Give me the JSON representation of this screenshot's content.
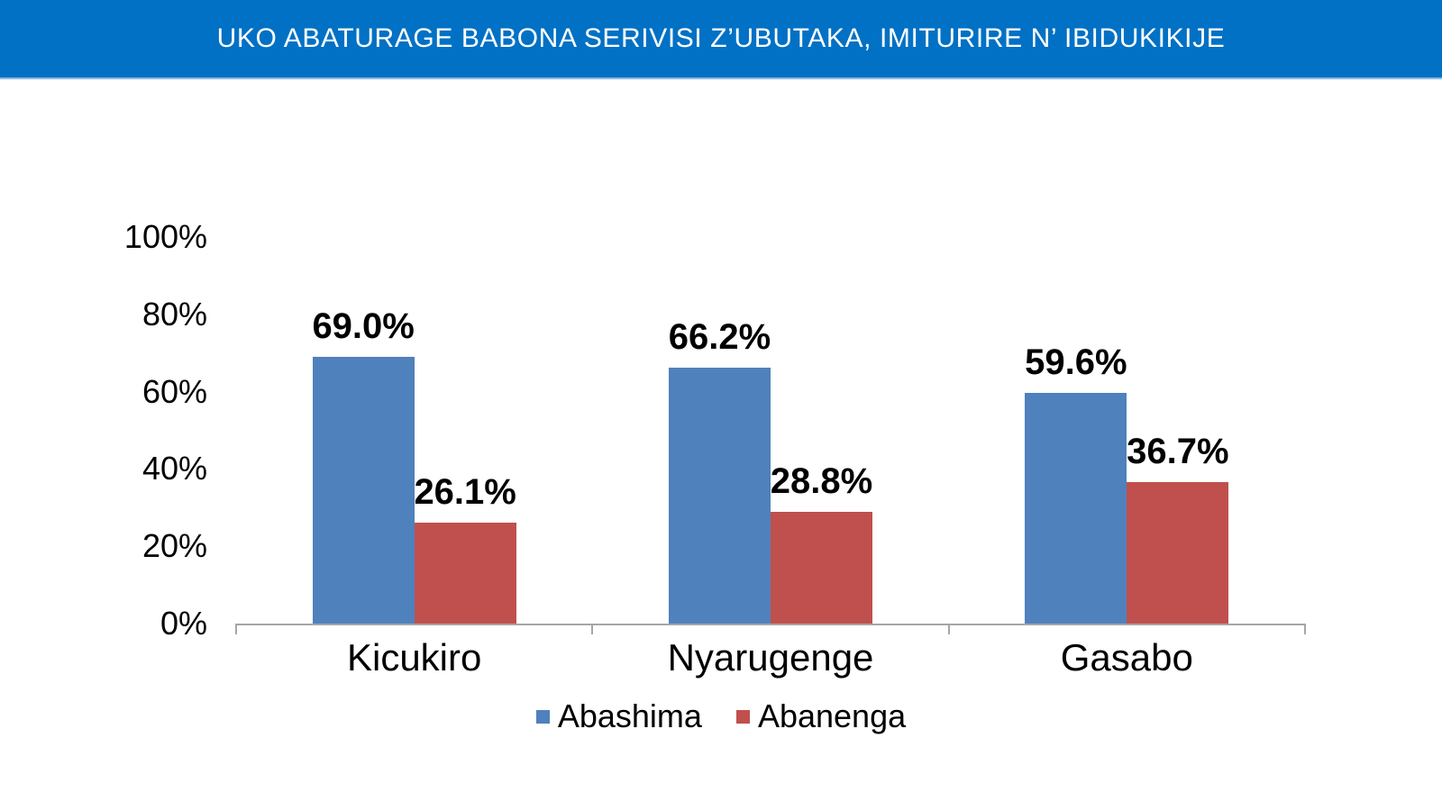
{
  "header": {
    "title": "UKO ABATURAGE BABONA SERIVISI Z’UBUTAKA, IMITURIRE N’ IBIDUKIKIJE",
    "background_color": "#0171C5",
    "accent_line_color": "#93BAE0",
    "text_color": "#FFFFFF"
  },
  "chart_data": {
    "type": "bar",
    "title": "",
    "categories": [
      "Kicukiro",
      "Nyarugenge",
      "Gasabo"
    ],
    "series": [
      {
        "name": "Abashima",
        "color": "#4F81BD",
        "values": [
          69.0,
          66.2,
          59.6
        ],
        "labels": [
          "69.0%",
          "66.2%",
          "59.6%"
        ]
      },
      {
        "name": "Abanenga",
        "color": "#C0504D",
        "values": [
          26.1,
          28.8,
          36.7
        ],
        "labels": [
          "26.1%",
          "28.8%",
          "36.7%"
        ]
      }
    ],
    "xlabel": "",
    "ylabel": "",
    "ylim": [
      0,
      100
    ],
    "yticks": [
      0,
      20,
      40,
      60,
      80,
      100
    ],
    "ytick_labels": [
      "0%",
      "20%",
      "40%",
      "60%",
      "80%",
      "100%"
    ],
    "grid": false,
    "legend_position": "bottom",
    "axis_color": "#A6A6A6",
    "label_color": "#000000"
  }
}
